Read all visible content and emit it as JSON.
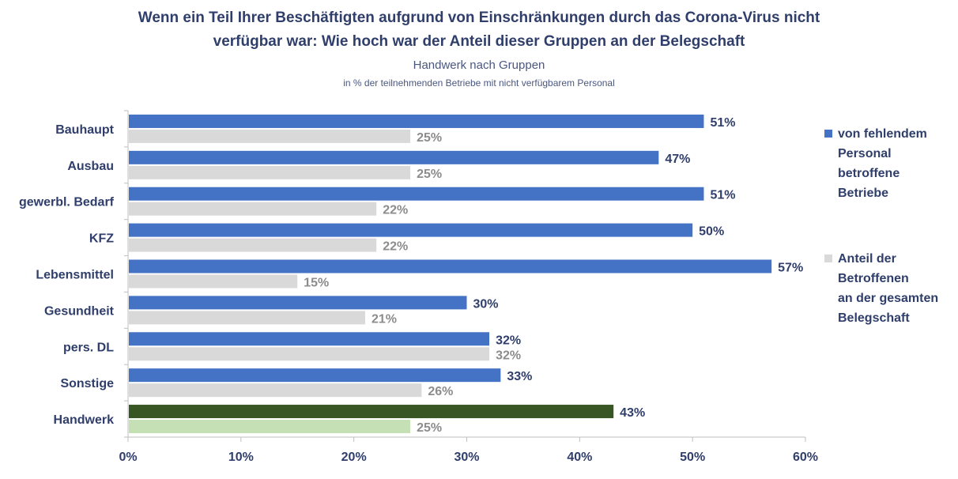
{
  "chart_data": {
    "type": "bar",
    "orientation": "horizontal",
    "title": "Wenn ein Teil Ihrer Beschäftigten aufgrund von Einschränkungen durch das Corona-Virus nicht verfügbar war: Wie hoch war der Anteil dieser Gruppen an der Belegschaft",
    "title_line1": "Wenn ein Teil Ihrer Beschäftigten aufgrund von Einschränkungen durch das Corona-Virus nicht",
    "title_line2": "verfügbar war: Wie hoch war der Anteil dieser Gruppen an der Belegschaft",
    "subtitle": "Handwerk nach Gruppen",
    "subtitle2": "in % der teilnehmenden Betriebe mit nicht verfügbarem Personal",
    "categories": [
      "Bauhaupt",
      "Ausbau",
      "gewerbl. Bedarf",
      "KFZ",
      "Lebensmittel",
      "Gesundheit",
      "pers. DL",
      "Sonstige",
      "Handwerk"
    ],
    "series": [
      {
        "name": "von fehlendem Personal betroffene Betriebe",
        "values": [
          51,
          47,
          51,
          50,
          57,
          30,
          32,
          33,
          43
        ],
        "color": "#4472c4",
        "highlight_color": "#375623"
      },
      {
        "name": "Anteil der Betroffenen an der gesamten Belegschaft",
        "values": [
          25,
          25,
          22,
          22,
          15,
          21,
          32,
          26,
          25
        ],
        "color": "#d9d9d9",
        "highlight_color": "#c5e0b4"
      }
    ],
    "highlight_category": "Handwerk",
    "xlim": [
      0,
      60
    ],
    "xticks": [
      0,
      10,
      20,
      30,
      40,
      50,
      60
    ],
    "tick_suffix": "%",
    "grid": false,
    "legend_position": "right",
    "legend": [
      {
        "lines": [
          "von fehlendem",
          "Personal",
          "betroffene",
          "Betriebe"
        ]
      },
      {
        "lines": [
          "Anteil der",
          "Betroffenen",
          "an der gesamten",
          "Belegschaft"
        ]
      }
    ],
    "label_colors": {
      "series1": "#2f3e6b",
      "series2": "#8c8c8c"
    }
  }
}
